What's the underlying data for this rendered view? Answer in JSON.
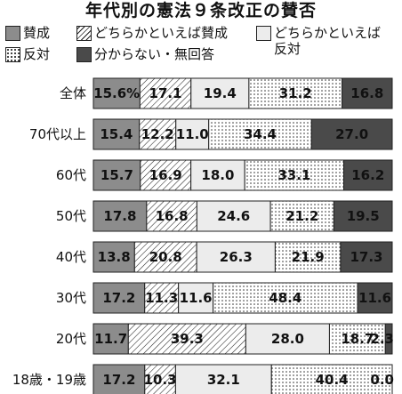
{
  "chart_data": {
    "type": "bar",
    "title": "年代別の憲法９条改正の賛否",
    "unit_label": "%",
    "categories": [
      "全体",
      "70代以上",
      "60代",
      "50代",
      "40代",
      "30代",
      "20代",
      "18歳・19歳"
    ],
    "series": [
      {
        "name": "賛成",
        "values": [
          15.6,
          15.4,
          15.7,
          17.8,
          13.8,
          17.2,
          11.7,
          17.2
        ],
        "color": "#8c8c8c",
        "pattern": "solid"
      },
      {
        "name": "どちらかといえば賛成",
        "values": [
          17.1,
          12.2,
          16.9,
          16.8,
          20.8,
          11.3,
          39.3,
          10.3
        ],
        "color": "#ffffff",
        "pattern": "diagonal"
      },
      {
        "name": "どちらかといえば反対",
        "values": [
          19.4,
          11.0,
          18.0,
          24.6,
          26.3,
          11.6,
          28.0,
          32.1
        ],
        "color": "#ececec",
        "pattern": "light"
      },
      {
        "name": "反対",
        "values": [
          31.2,
          34.4,
          33.1,
          21.2,
          21.9,
          48.4,
          18.7,
          40.4
        ],
        "color": "#ffffff",
        "pattern": "dots"
      },
      {
        "name": "分からない・無回答",
        "values": [
          16.8,
          27.0,
          16.2,
          19.5,
          17.3,
          11.6,
          2.3,
          0.0
        ],
        "color": "#4a4a4a",
        "pattern": "solid"
      }
    ],
    "legend": {
      "labels": [
        "賛成",
        "どちらかといえば賛成",
        "どちらかといえば\n反対",
        "反対",
        "分からない・無回答"
      ]
    },
    "stacked": true,
    "orientation": "horizontal",
    "grid": false
  }
}
